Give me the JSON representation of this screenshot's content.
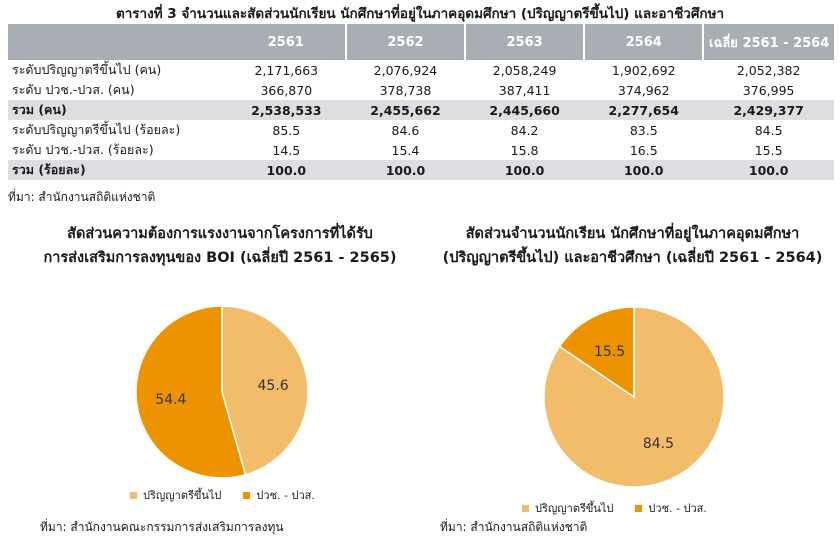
{
  "table": {
    "title": "ตารางที่ 3 จำนวนและสัดส่วนนักเรียน นักศึกษาที่อยู่ในภาคอุดมศึกษา (ปริญญาตรีขึ้นไป) และอาชีวศึกษา",
    "columns": [
      "",
      "2561",
      "2562",
      "2563",
      "2564",
      "เฉลี่ย 2561 - 2564"
    ],
    "rows": [
      {
        "label": "ระดับปริญญาตรีขึ้นไป (คน)",
        "values": [
          "2,171,663",
          "2,076,924",
          "2,058,249",
          "1,902,692",
          "2,052,382"
        ],
        "total": false
      },
      {
        "label": "ระดับ ปวช.-ปวส. (คน)",
        "values": [
          "366,870",
          "378,738",
          "387,411",
          "374,962",
          "376,995"
        ],
        "total": false
      },
      {
        "label": "รวม (คน)",
        "values": [
          "2,538,533",
          "2,455,662",
          "2,445,660",
          "2,277,654",
          "2,429,377"
        ],
        "total": true
      },
      {
        "label": "ระดับปริญญาตรีขึ้นไป (ร้อยละ)",
        "values": [
          "85.5",
          "84.6",
          "84.2",
          "83.5",
          "84.5"
        ],
        "total": false
      },
      {
        "label": "ระดับ ปวช.-ปวส. (ร้อยละ)",
        "values": [
          "14.5",
          "15.4",
          "15.8",
          "16.5",
          "15.5"
        ],
        "total": false
      },
      {
        "label": "รวม (ร้อยละ)",
        "values": [
          "100.0",
          "100.0",
          "100.0",
          "100.0",
          "100.0"
        ],
        "total": true
      }
    ],
    "source": "ที่มา: สำนักงานสถิติแห่งชาติ"
  },
  "chart_data": [
    {
      "type": "pie",
      "title_lines": [
        "สัดส่วนความต้องการแรงงานจากโครงการที่ได้รับ",
        "การส่งเสริมการลงทุนของ BOI (เฉลี่ยปี 2561 - 2565)"
      ],
      "slices": [
        {
          "label": "ปริญญาตรีขึ้นไป",
          "value": 45.6,
          "display": "45.6",
          "color": "#f2bc6a"
        },
        {
          "label": "ปวช. - ปวส.",
          "value": 54.4,
          "display": "54.4",
          "color": "#ee9300"
        }
      ],
      "legend_position": "bottom",
      "source": "ที่มา: สำนักงานคณะกรรมการส่งเสริมการลงทุน"
    },
    {
      "type": "pie",
      "title_lines": [
        "สัดส่วนจำนวนนักเรียน นักศึกษาที่อยู่ในภาคอุดมศึกษา",
        "(ปริญญาตรีขึ้นไป) และอาชีวศึกษา (เฉลี่ยปี 2561 - 2564)"
      ],
      "slices": [
        {
          "label": "ปริญญาตรีขึ้นไป",
          "value": 84.5,
          "display": "84.5",
          "color": "#f2bc6a"
        },
        {
          "label": "ปวช. - ปวส.",
          "value": 15.5,
          "display": "15.5",
          "color": "#ee9300"
        }
      ],
      "legend_position": "bottom",
      "source": "ที่มา: สำนักงานสถิติแห่งชาติ"
    }
  ]
}
